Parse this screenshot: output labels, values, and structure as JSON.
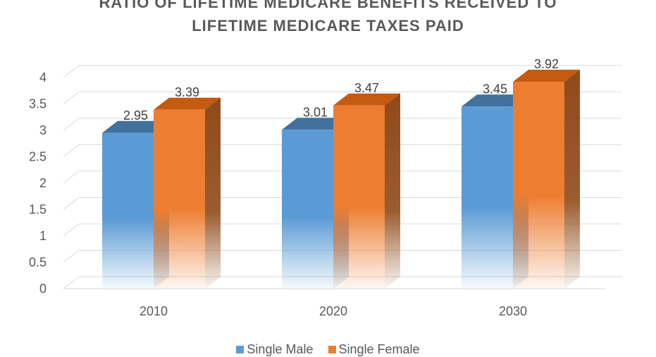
{
  "chart_data": {
    "type": "bar",
    "title_lines": [
      "RATIO OF LIFETIME MEDICARE BENEFITS RECEIVED TO",
      "LIFETIME MEDICARE TAXES PAID"
    ],
    "categories": [
      "2010",
      "2020",
      "2030"
    ],
    "series": [
      {
        "name": "Single Male",
        "values": [
          2.95,
          3.01,
          3.45
        ],
        "color": "#5B9BD5",
        "side_color": "#2E75B6",
        "top_color": "#41719C"
      },
      {
        "name": "Single Female",
        "values": [
          3.39,
          3.47,
          3.92
        ],
        "color": "#ED7D31",
        "side_color": "#8F4A1A",
        "top_color": "#C55A11"
      }
    ],
    "y_ticks": [
      "0",
      "0.5",
      "1",
      "1.5",
      "2",
      "2.5",
      "3",
      "3.5",
      "4"
    ],
    "ylim": [
      0,
      4
    ],
    "grid": true,
    "legend_position": "bottom",
    "three_d": true
  }
}
